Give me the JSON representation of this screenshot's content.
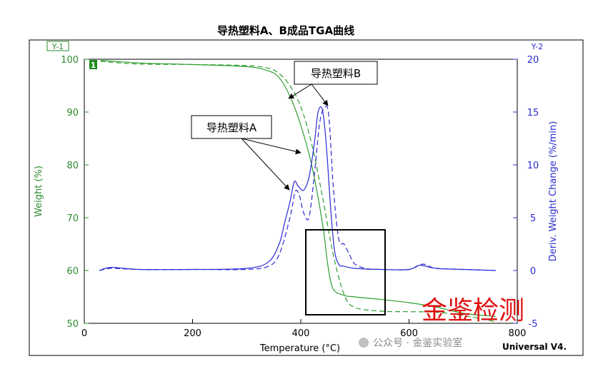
{
  "chart_data": {
    "type": "line",
    "title": "导热塑料A、B成品TGA曲线",
    "xlabel": "Temperature (°C)",
    "y1label": "Weight (%)",
    "y2label": "Deriv. Weight Change (%/min)",
    "y1_tag": "Y-1",
    "y2_tag": "Y-2",
    "curve_marker": "1",
    "xlim": [
      0,
      800
    ],
    "y1lim": [
      50,
      100
    ],
    "y2lim": [
      -5,
      20
    ],
    "x_ticks": [
      "0",
      "200",
      "400",
      "600",
      "800"
    ],
    "y1_ticks": [
      "50",
      "60",
      "70",
      "80",
      "90",
      "100"
    ],
    "y2_ticks": [
      "-5",
      "0",
      "5",
      "10",
      "15",
      "20"
    ],
    "annotations": [
      "导热塑料B",
      "导热塑料A"
    ],
    "watermark": "金鉴检测",
    "footer_text": "公众号 · 金鉴实验室",
    "software_label": "Universal V4.",
    "colors": {
      "weight": "#2e9e2e",
      "deriv": "#2a2ad6",
      "watermark": "#e01010"
    },
    "series": [
      {
        "name": "Weight A",
        "axis": "y1",
        "style": "solid",
        "x": [
          30,
          100,
          200,
          300,
          340,
          360,
          380,
          400,
          420,
          440,
          450,
          460,
          480,
          500,
          550,
          600,
          650,
          700,
          760
        ],
        "y": [
          99.8,
          99.3,
          99.0,
          98.6,
          97.8,
          96.5,
          93.0,
          87.5,
          80.0,
          69.0,
          61.0,
          56.5,
          55.3,
          55.0,
          54.5,
          53.9,
          53.1,
          51.9,
          51.3
        ]
      },
      {
        "name": "Weight B",
        "axis": "y1",
        "style": "dashed",
        "x": [
          30,
          100,
          200,
          300,
          340,
          360,
          380,
          400,
          420,
          440,
          460,
          480,
          500,
          550,
          600,
          650,
          700,
          760
        ],
        "y": [
          99.6,
          99.1,
          99.0,
          98.8,
          98.3,
          97.3,
          95.0,
          91.0,
          84.0,
          74.0,
          63.0,
          55.5,
          53.0,
          52.3,
          52.2,
          52.1,
          51.5,
          50.3
        ]
      },
      {
        "name": "Deriv A",
        "axis": "y2",
        "style": "solid",
        "x": [
          28,
          50,
          100,
          200,
          300,
          340,
          360,
          370,
          380,
          388,
          395,
          405,
          415,
          425,
          432,
          440,
          447,
          455,
          462,
          470,
          480,
          500,
          550,
          600,
          620,
          650,
          700,
          760
        ],
        "y": [
          0.0,
          0.3,
          0.1,
          0.1,
          0.2,
          0.8,
          2.5,
          4.5,
          6.5,
          8.4,
          8.0,
          7.6,
          8.8,
          12.0,
          15.0,
          15.2,
          12.0,
          6.0,
          2.0,
          0.6,
          0.4,
          0.2,
          0.1,
          0.1,
          0.5,
          0.2,
          0.1,
          0.0
        ]
      },
      {
        "name": "Deriv B",
        "axis": "y2",
        "style": "dashed",
        "x": [
          28,
          50,
          100,
          200,
          300,
          340,
          360,
          380,
          390,
          398,
          405,
          415,
          425,
          435,
          445,
          452,
          460,
          470,
          480,
          490,
          500,
          520,
          550,
          600,
          625,
          650,
          700,
          760
        ],
        "y": [
          0.0,
          0.2,
          0.1,
          0.1,
          0.1,
          0.4,
          1.5,
          5.0,
          7.5,
          7.0,
          5.5,
          5.0,
          9.0,
          14.0,
          15.5,
          14.5,
          8.0,
          3.0,
          2.5,
          1.5,
          0.6,
          0.2,
          0.1,
          0.1,
          0.6,
          0.2,
          0.1,
          0.0
        ]
      }
    ]
  }
}
